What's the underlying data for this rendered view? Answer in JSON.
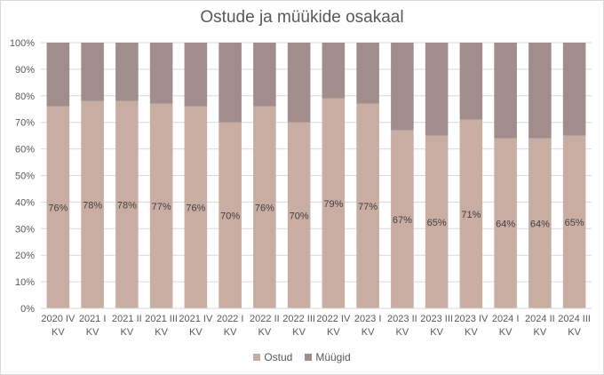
{
  "chart_data": {
    "type": "bar",
    "stacked": "percent",
    "title": "Ostude ja müükide osakaal",
    "categories": [
      [
        "2020 IV",
        "KV"
      ],
      [
        "2021 I",
        "KV"
      ],
      [
        "2021 II",
        "KV"
      ],
      [
        "2021 III",
        "KV"
      ],
      [
        "2021 IV",
        "KV"
      ],
      [
        "2022 I",
        "KV"
      ],
      [
        "2022 II",
        "KV"
      ],
      [
        "2022 III",
        "KV"
      ],
      [
        "2022 IV",
        "KV"
      ],
      [
        "2023 I",
        "KV"
      ],
      [
        "2023 II",
        "KV"
      ],
      [
        "2023 III",
        "KV"
      ],
      [
        "2023 IV",
        "KV"
      ],
      [
        "2024 I",
        "KV"
      ],
      [
        "2024 II",
        "KV"
      ],
      [
        "2024 III",
        "KV"
      ]
    ],
    "series": [
      {
        "name": "Ostud",
        "color": "#c9ada3",
        "values": [
          76,
          78,
          78,
          77,
          76,
          70,
          76,
          70,
          79,
          77,
          67,
          65,
          71,
          64,
          64,
          65
        ],
        "data_labels": [
          "76%",
          "78%",
          "78%",
          "77%",
          "76%",
          "70%",
          "76%",
          "70%",
          "79%",
          "77%",
          "67%",
          "65%",
          "71%",
          "64%",
          "64%",
          "65%"
        ]
      },
      {
        "name": "Müügid",
        "color": "#a18d8c",
        "values": [
          24,
          22,
          22,
          23,
          24,
          30,
          24,
          30,
          21,
          23,
          33,
          35,
          29,
          36,
          36,
          35
        ]
      }
    ],
    "ylim": [
      0,
      100
    ],
    "yticks": [
      "0%",
      "10%",
      "20%",
      "30%",
      "40%",
      "50%",
      "60%",
      "70%",
      "80%",
      "90%",
      "100%"
    ],
    "grid": true,
    "legend_position": "bottom",
    "xlabel": "",
    "ylabel": ""
  }
}
